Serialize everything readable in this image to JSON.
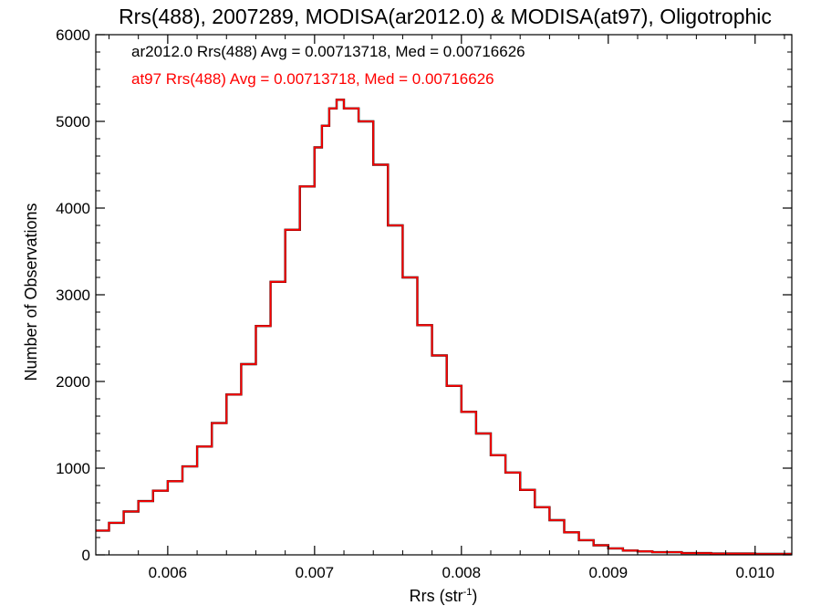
{
  "chart_data": {
    "type": "histogram-step",
    "title": "Rrs(488), 2007289, MODISA(ar2012.0) & MODISA(at97), Oligotrophic",
    "xlabel_main": "Rrs (str",
    "xlabel_sup": "-1",
    "xlabel_tail": ")",
    "ylabel": "Number of Observations",
    "xlim": [
      0.00551,
      0.01025
    ],
    "ylim": [
      0,
      6000
    ],
    "x_ticks": [
      0.006,
      0.007,
      0.008,
      0.009,
      0.01
    ],
    "x_tick_labels": [
      "0.006",
      "0.007",
      "0.008",
      "0.009",
      "0.010"
    ],
    "y_ticks": [
      0,
      1000,
      2000,
      3000,
      4000,
      5000,
      6000
    ],
    "y_tick_labels": [
      "0",
      "1000",
      "2000",
      "3000",
      "4000",
      "5000",
      "6000"
    ],
    "annotations": [
      {
        "text": "ar2012.0 Rrs(488) Avg = 0.00713718, Med = 0.00716626",
        "color": "#000000"
      },
      {
        "text": "at97 Rrs(488) Avg = 0.00713718, Med = 0.00716626",
        "color": "#ff0000"
      }
    ],
    "series": [
      {
        "color": "#000000",
        "x": [
          0.0055,
          0.0056,
          0.0057,
          0.0058,
          0.0059,
          0.006,
          0.0061,
          0.0062,
          0.0063,
          0.0064,
          0.0065,
          0.0066,
          0.0067,
          0.0068,
          0.0069,
          0.007,
          0.00705,
          0.0071,
          0.00715,
          0.0072,
          0.0073,
          0.0074,
          0.0075,
          0.0076,
          0.0077,
          0.0078,
          0.0079,
          0.008,
          0.0081,
          0.0082,
          0.0083,
          0.0084,
          0.0085,
          0.0086,
          0.0087,
          0.0088,
          0.0089,
          0.009,
          0.0091,
          0.0092,
          0.0093,
          0.0095,
          0.0097,
          0.01,
          0.01025
        ],
        "y": [
          280,
          370,
          500,
          620,
          740,
          850,
          1020,
          1250,
          1520,
          1850,
          2200,
          2640,
          3150,
          3750,
          4250,
          4700,
          4950,
          5150,
          5250,
          5150,
          5000,
          4500,
          3800,
          3200,
          2650,
          2300,
          1950,
          1650,
          1400,
          1150,
          950,
          750,
          550,
          400,
          260,
          170,
          110,
          75,
          50,
          40,
          30,
          20,
          15,
          10,
          5
        ]
      },
      {
        "color": "#ff0000",
        "x": [
          0.0055,
          0.0056,
          0.0057,
          0.0058,
          0.0059,
          0.006,
          0.0061,
          0.0062,
          0.0063,
          0.0064,
          0.0065,
          0.0066,
          0.0067,
          0.0068,
          0.0069,
          0.007,
          0.00705,
          0.0071,
          0.00715,
          0.0072,
          0.0073,
          0.0074,
          0.0075,
          0.0076,
          0.0077,
          0.0078,
          0.0079,
          0.008,
          0.0081,
          0.0082,
          0.0083,
          0.0084,
          0.0085,
          0.0086,
          0.0087,
          0.0088,
          0.0089,
          0.009,
          0.0091,
          0.0092,
          0.0093,
          0.0095,
          0.0097,
          0.01,
          0.01025
        ],
        "y": [
          280,
          370,
          500,
          620,
          740,
          850,
          1020,
          1250,
          1520,
          1850,
          2200,
          2640,
          3150,
          3750,
          4250,
          4700,
          4950,
          5150,
          5250,
          5150,
          5000,
          4500,
          3800,
          3200,
          2650,
          2300,
          1950,
          1650,
          1400,
          1150,
          950,
          750,
          550,
          400,
          260,
          170,
          110,
          75,
          50,
          40,
          30,
          20,
          15,
          10,
          5
        ]
      }
    ]
  }
}
